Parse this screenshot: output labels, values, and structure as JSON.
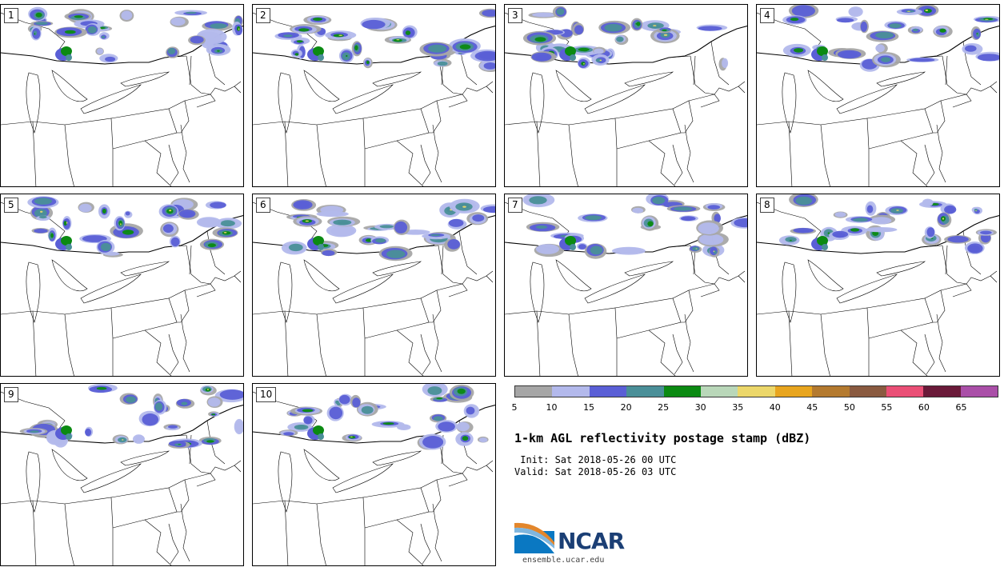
{
  "panels": [
    {
      "label": "1",
      "seed": 11
    },
    {
      "label": "2",
      "seed": 23
    },
    {
      "label": "3",
      "seed": 37
    },
    {
      "label": "4",
      "seed": 41
    },
    {
      "label": "5",
      "seed": 53
    },
    {
      "label": "6",
      "seed": 67
    },
    {
      "label": "7",
      "seed": 71
    },
    {
      "label": "8",
      "seed": 83
    },
    {
      "label": "9",
      "seed": 97
    },
    {
      "label": "10",
      "seed": 101
    }
  ],
  "legend": {
    "colors": [
      "#a6a6a6",
      "#b3b9ec",
      "#5a5fd6",
      "#4a8f98",
      "#0b8a12",
      "#b9d7b9",
      "#ecd76a",
      "#e8a51f",
      "#b47a2f",
      "#8a5a40",
      "#ea4f76",
      "#6a1a39",
      "#aa4fa8"
    ],
    "ticks": [
      "5",
      "10",
      "15",
      "20",
      "25",
      "30",
      "35",
      "40",
      "45",
      "50",
      "55",
      "60",
      "65"
    ]
  },
  "title": "1-km AGL reflectivity postage stamp (dBZ)",
  "init_line": " Init: Sat 2018-05-26 00 UTC",
  "valid_line": "Valid: Sat 2018-05-26 03 UTC",
  "logo": {
    "text": "NCAR",
    "url_text": "ensemble.ucar.edu"
  }
}
